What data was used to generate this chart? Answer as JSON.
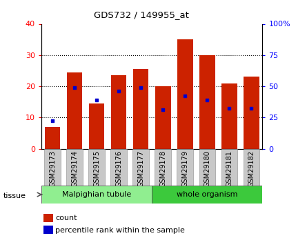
{
  "title": "GDS732 / 149955_at",
  "samples": [
    "GSM29173",
    "GSM29174",
    "GSM29175",
    "GSM29176",
    "GSM29177",
    "GSM29178",
    "GSM29179",
    "GSM29180",
    "GSM29181",
    "GSM29182"
  ],
  "counts": [
    7,
    24.5,
    14.5,
    23.5,
    25.5,
    20,
    35,
    30,
    21,
    23
  ],
  "percentile_right_axis": [
    22.5,
    49,
    39,
    46,
    49,
    31,
    42.5,
    39,
    32.5,
    32.5
  ],
  "bar_color": "#cc2200",
  "dot_color": "#0000cc",
  "ylim_left": [
    0,
    40
  ],
  "ylim_right": [
    0,
    100
  ],
  "yticks_left": [
    0,
    10,
    20,
    30,
    40
  ],
  "yticks_right": [
    0,
    25,
    50,
    75,
    100
  ],
  "group1_label": "Malpighian tubule",
  "group2_label": "whole organism",
  "group1_count": 5,
  "group2_count": 5,
  "group_color": "#90ee90",
  "group_dark_color": "#3cc93c",
  "tick_bg": "#c8c8c8",
  "tissue_label": "tissue",
  "legend_count": "count",
  "legend_pct": "percentile rank within the sample"
}
